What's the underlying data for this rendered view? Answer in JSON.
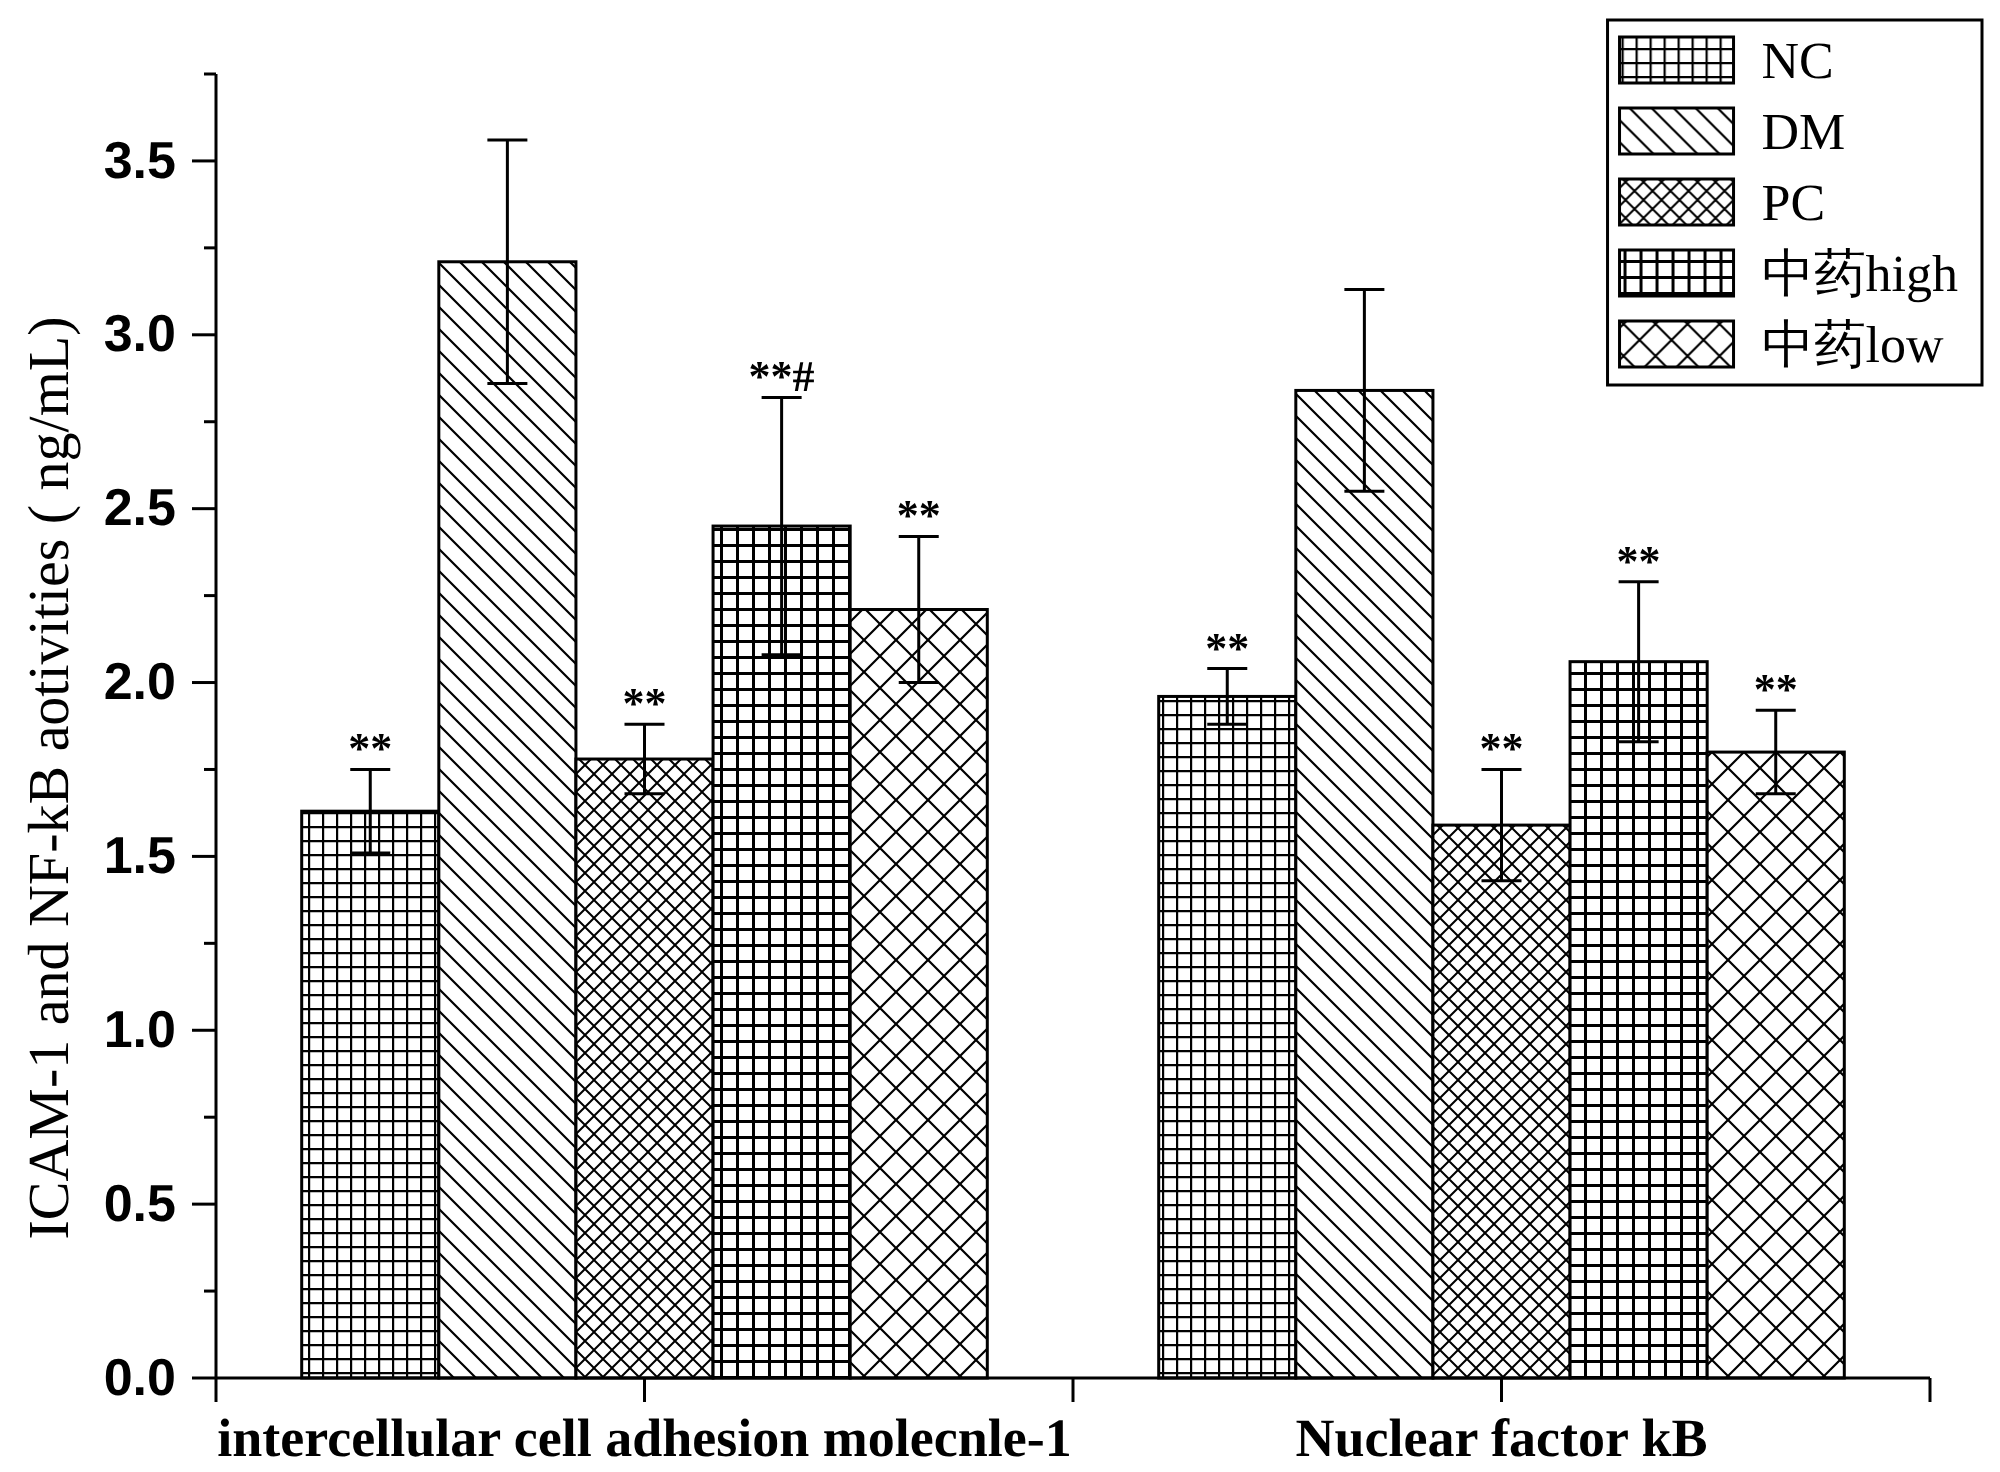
{
  "chart_data": {
    "type": "bar",
    "ylabel": "ICAM-1 and NF-kB aotivities ( ng/mL)",
    "categories": [
      "intercellular cell adhesion molecnle-1",
      "Nuclear factor kB"
    ],
    "series": [
      {
        "name": "NC",
        "color": "#000000",
        "values": [
          1.63,
          1.96
        ],
        "errors": [
          0.12,
          0.08
        ],
        "value_labels": [
          "**",
          "**"
        ]
      },
      {
        "name": "DM",
        "color": "#000000",
        "values": [
          3.21,
          2.84
        ],
        "errors": [
          0.35,
          0.29
        ]
      },
      {
        "name": "PC",
        "color": "#000000",
        "values": [
          1.78,
          1.59
        ],
        "errors": [
          0.1,
          0.16
        ],
        "value_labels": [
          "**",
          "**"
        ]
      },
      {
        "name": "中药high",
        "color": "#000000",
        "values": [
          2.45,
          2.06
        ],
        "errors": [
          0.37,
          0.23
        ],
        "value_labels": [
          "**#",
          "**"
        ]
      },
      {
        "name": "中药low",
        "color": "#000000",
        "values": [
          2.21,
          1.8
        ],
        "errors": [
          0.21,
          0.12
        ],
        "value_labels": [
          "**",
          "**"
        ]
      }
    ],
    "ylim": [
      0,
      3.75
    ],
    "yticks": [
      {
        "value": 0,
        "label": "0.0"
      },
      {
        "value": 0.25,
        "label": null
      },
      {
        "value": 0.5,
        "label": "0.5"
      },
      {
        "value": 0.75,
        "label": null
      },
      {
        "value": 1,
        "label": "1.0"
      },
      {
        "value": 1.25,
        "label": null
      },
      {
        "value": 1.5,
        "label": "1.5"
      },
      {
        "value": 1.75,
        "label": null
      },
      {
        "value": 2,
        "label": "2.0"
      },
      {
        "value": 2.25,
        "label": null
      },
      {
        "value": 2.5,
        "label": "2.5"
      },
      {
        "value": 2.75,
        "label": null
      },
      {
        "value": 3,
        "label": "3.0"
      },
      {
        "value": 3.25,
        "label": null
      },
      {
        "value": 3.5,
        "label": "3.5"
      },
      {
        "value": 3.75,
        "label": null
      }
    ],
    "legend": "top right"
  }
}
